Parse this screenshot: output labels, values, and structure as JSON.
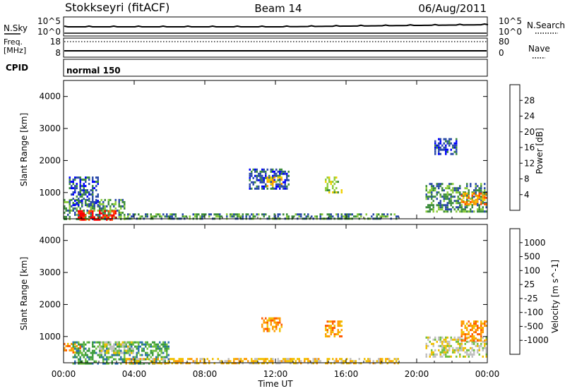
{
  "header": {
    "station": "Stokkseyri (fitACF)",
    "beam": "Beam 14",
    "date": "06/Aug/2011"
  },
  "noise_panel": {
    "left_label": "N.Sky",
    "left_ticks": [
      "10^5",
      "10^0"
    ],
    "right_label": "N.Search",
    "right_ticks": [
      "10^5",
      "10^0"
    ]
  },
  "freq_panel": {
    "left_label_1": "Freq.",
    "left_label_2": "[MHz]",
    "left_ticks": [
      "18",
      "8"
    ],
    "right_label": "Nave",
    "right_ticks": [
      "80",
      "0"
    ]
  },
  "cpid_panel": {
    "label": "CPID",
    "program": "normal 150"
  },
  "chart_data": [
    {
      "type": "heatmap",
      "parameter": "Power",
      "ylabel": "Slant Range [km]",
      "ylim": [
        180,
        4500
      ],
      "yticks": [
        "1000",
        "2000",
        "3000",
        "4000"
      ],
      "xlim_hours": [
        0,
        24
      ],
      "colorbar_label": "Power [dB]",
      "colorbar_ticks": [
        "28",
        "24",
        "20",
        "16",
        "12",
        "8",
        "4"
      ],
      "colorbar_colors": [
        "#0000ff",
        "#2a4aaa",
        "#3c8c3c",
        "#8ccc3c",
        "#f0d000",
        "#ff9a00",
        "#ff5000",
        "#ff0000"
      ],
      "echo_regions": [
        {
          "t0": 0.0,
          "t1": 3.5,
          "r0": 180,
          "r1": 800,
          "level": 2
        },
        {
          "t0": 0.8,
          "t1": 3.0,
          "r0": 180,
          "r1": 450,
          "level": 7
        },
        {
          "t0": 0.3,
          "t1": 2.0,
          "r0": 600,
          "r1": 1500,
          "level": 1
        },
        {
          "t0": 3.5,
          "t1": 19.0,
          "r0": 180,
          "r1": 350,
          "level": 2
        },
        {
          "t0": 10.5,
          "t1": 12.8,
          "r0": 1100,
          "r1": 1750,
          "level": 1
        },
        {
          "t0": 11.5,
          "t1": 12.3,
          "r0": 1200,
          "r1": 1500,
          "level": 4
        },
        {
          "t0": 14.8,
          "t1": 15.8,
          "r0": 1000,
          "r1": 1500,
          "level": 3
        },
        {
          "t0": 20.5,
          "t1": 24.0,
          "r0": 400,
          "r1": 1300,
          "level": 2
        },
        {
          "t0": 22.5,
          "t1": 24.0,
          "r0": 650,
          "r1": 1000,
          "level": 5
        },
        {
          "t0": 21.0,
          "t1": 22.3,
          "r0": 2200,
          "r1": 2700,
          "level": 1
        }
      ]
    },
    {
      "type": "heatmap",
      "parameter": "Velocity",
      "ylabel": "Slant Range [km]",
      "ylim": [
        180,
        4500
      ],
      "yticks": [
        "1000",
        "2000",
        "3000",
        "4000"
      ],
      "xlim_hours": [
        0,
        24
      ],
      "colorbar_label": "Velocity [m s^-1]",
      "colorbar_ticks": [
        "1000",
        "500",
        "100",
        "25",
        "-25",
        "-100",
        "-500",
        "-1000"
      ],
      "colorbar_colors": [
        "#2040c0",
        "#2a70b0",
        "#3c9c3c",
        "#70c040",
        "#c0c0c0",
        "#f0c000",
        "#ff9a00",
        "#ff5a00",
        "#ff0000"
      ],
      "echo_regions": [
        {
          "t0": 0.0,
          "t1": 1.0,
          "r0": 500,
          "r1": 800,
          "level": 6
        },
        {
          "t0": 0.5,
          "t1": 6.0,
          "r0": 180,
          "r1": 850,
          "level": 2
        },
        {
          "t0": 2.0,
          "t1": 4.0,
          "r0": 500,
          "r1": 850,
          "level": 4
        },
        {
          "t0": 3.5,
          "t1": 19.0,
          "r0": 180,
          "r1": 330,
          "level": 5
        },
        {
          "t0": 11.2,
          "t1": 12.3,
          "r0": 1150,
          "r1": 1600,
          "level": 6
        },
        {
          "t0": 14.8,
          "t1": 15.8,
          "r0": 1000,
          "r1": 1500,
          "level": 6
        },
        {
          "t0": 20.5,
          "t1": 24.0,
          "r0": 400,
          "r1": 1000,
          "level": 4
        },
        {
          "t0": 22.5,
          "t1": 24.0,
          "r0": 900,
          "r1": 1500,
          "level": 6
        }
      ]
    }
  ],
  "x_axis": {
    "ticks": [
      "00:00",
      "04:00",
      "08:00",
      "12:00",
      "16:00",
      "20:00",
      "00:00"
    ],
    "label": "Time UT"
  }
}
